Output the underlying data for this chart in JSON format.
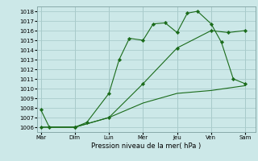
{
  "background_color": "#cce8e8",
  "grid_color": "#aacccc",
  "line_color": "#1a6b1a",
  "marker_color": "#1a6b1a",
  "xlabel": "Pression niveau de la mer( hPa )",
  "ylim": [
    1005.5,
    1018.5
  ],
  "yticks": [
    1006,
    1007,
    1008,
    1009,
    1010,
    1011,
    1012,
    1013,
    1014,
    1015,
    1016,
    1017,
    1018
  ],
  "xtick_labels": [
    "Mar",
    "Dim",
    "Lun",
    "Mer",
    "Jeu",
    "Ven",
    "Sam"
  ],
  "xtick_positions": [
    0,
    1,
    2,
    3,
    4,
    5,
    6
  ],
  "series": [
    {
      "x": [
        0,
        0.25,
        1.0,
        1.35,
        2.0,
        2.3,
        2.6,
        3.0,
        3.3,
        3.65,
        4.0,
        4.3,
        4.6,
        5.0,
        5.3,
        5.65,
        6.0
      ],
      "y": [
        1007.8,
        1006.0,
        1006.0,
        1006.5,
        1009.5,
        1013.0,
        1015.2,
        1015.0,
        1016.7,
        1016.8,
        1015.8,
        1017.8,
        1018.0,
        1016.7,
        1014.8,
        1011.0,
        1010.5
      ],
      "markers": true
    },
    {
      "x": [
        0,
        1.0,
        2.0,
        3.0,
        4.0,
        5.0,
        5.5,
        6.0
      ],
      "y": [
        1006.0,
        1006.0,
        1007.0,
        1010.5,
        1014.2,
        1016.0,
        1015.8,
        1016.0
      ],
      "markers": true
    },
    {
      "x": [
        0,
        1.0,
        2.0,
        3.0,
        4.0,
        5.0,
        6.0
      ],
      "y": [
        1006.0,
        1006.0,
        1007.0,
        1008.5,
        1009.5,
        1009.8,
        1010.3
      ],
      "markers": false
    }
  ],
  "tick_fontsize": 5,
  "xlabel_fontsize": 6,
  "linewidth": 0.8,
  "markersize": 2.2
}
